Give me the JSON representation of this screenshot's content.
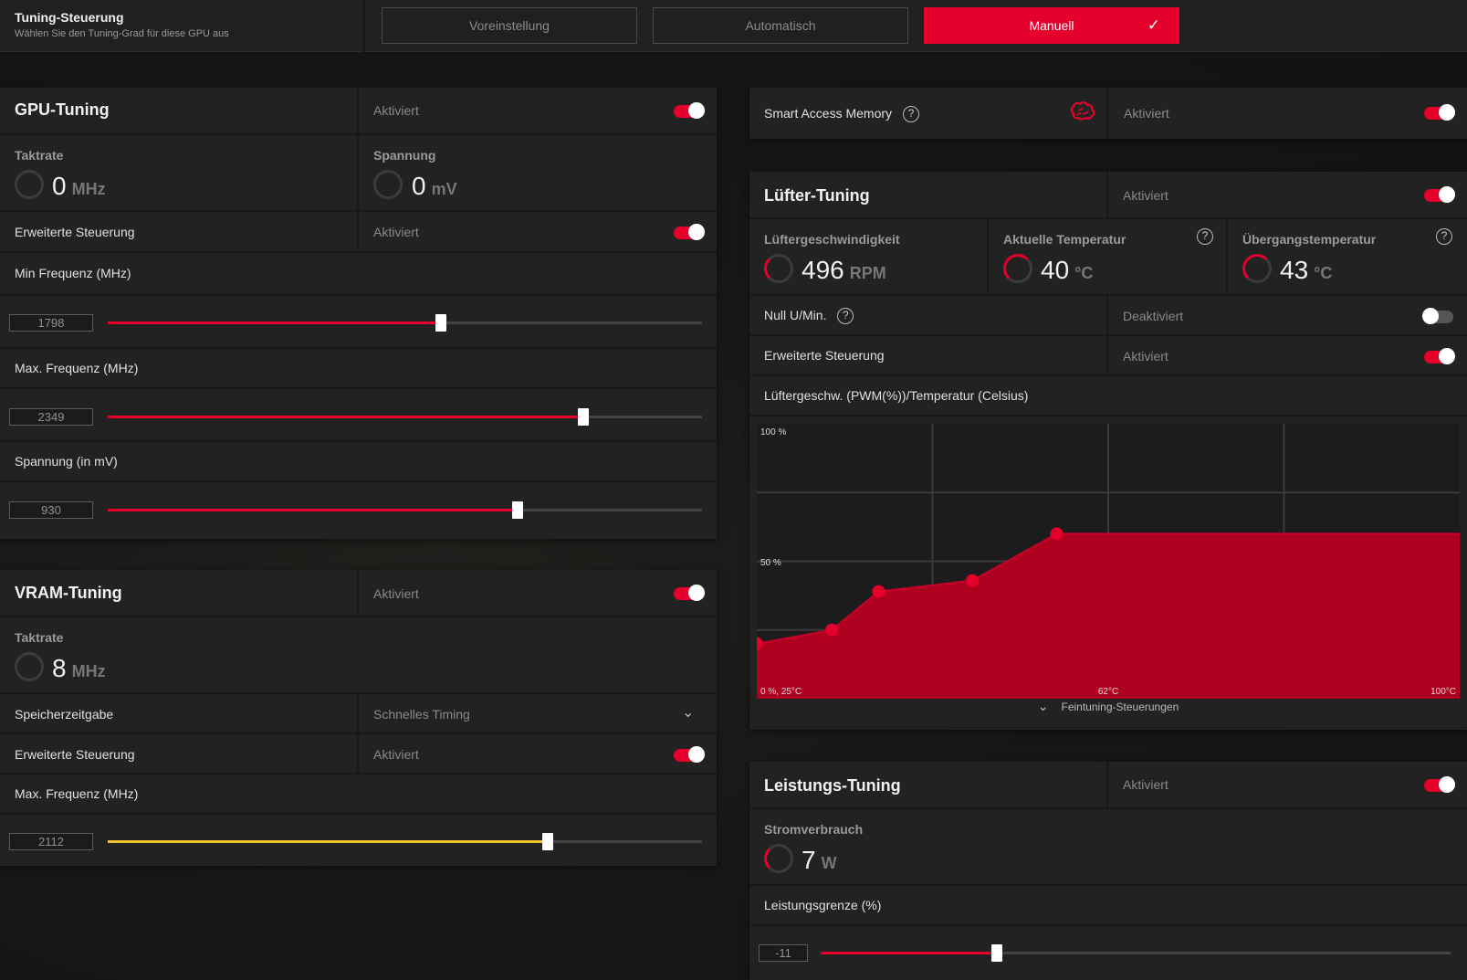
{
  "header": {
    "title": "Tuning-Steuerung",
    "subtitle": "Wählen Sie den Tuning-Grad für diese GPU aus",
    "modes": [
      "Voreinstellung",
      "Automatisch",
      "Manuell"
    ],
    "active_mode": "Manuell"
  },
  "gpu_tuning": {
    "title": "GPU-Tuning",
    "state": "Aktiviert",
    "clock": {
      "label": "Taktrate",
      "value": "0",
      "unit": "MHz"
    },
    "voltage": {
      "label": "Spannung",
      "value": "0",
      "unit": "mV"
    },
    "advanced": {
      "label": "Erweiterte Steuerung",
      "state": "Aktiviert"
    },
    "min_freq": {
      "label": "Min Frequenz (MHz)",
      "value": "1798",
      "fraction": 0.56
    },
    "max_freq": {
      "label": "Max. Frequenz (MHz)",
      "value": "2349",
      "fraction": 0.8
    },
    "voltage_mv": {
      "label": "Spannung (in mV)",
      "value": "930",
      "fraction": 0.69
    }
  },
  "vram_tuning": {
    "title": "VRAM-Tuning",
    "state": "Aktiviert",
    "clock": {
      "label": "Taktrate",
      "value": "8",
      "unit": "MHz"
    },
    "timing": {
      "label": "Speicherzeitgabe",
      "value": "Schnelles Timing"
    },
    "advanced": {
      "label": "Erweiterte Steuerung",
      "state": "Aktiviert"
    },
    "max_freq": {
      "label": "Max. Frequenz (MHz)",
      "value": "2112",
      "fraction": 0.74
    }
  },
  "sam": {
    "label": "Smart Access Memory",
    "state": "Aktiviert",
    "help": "?"
  },
  "fan_tuning": {
    "title": "Lüfter-Tuning",
    "state": "Aktiviert",
    "speed": {
      "label": "Lüftergeschwindigkeit",
      "value": "496",
      "unit": "RPM"
    },
    "temp": {
      "label": "Aktuelle Temperatur",
      "value": "40",
      "unit": "°C"
    },
    "junction": {
      "label": "Übergangstemperatur",
      "value": "43",
      "unit": "°C"
    },
    "zero_rpm": {
      "label": "Null U/Min.",
      "state": "Deaktiviert"
    },
    "advanced": {
      "label": "Erweiterte Steuerung",
      "state": "Aktiviert"
    },
    "curve_title": "Lüftergeschw. (PWM(%))/Temperatur (Celsius)",
    "fine": "Feintuning-Steuerungen"
  },
  "power_tuning": {
    "title": "Leistungs-Tuning",
    "state": "Aktiviert",
    "power": {
      "label": "Stromverbrauch",
      "value": "7",
      "unit": "W"
    },
    "limit": {
      "label": "Leistungsgrenze (%)",
      "value": "-11",
      "fraction": 0.28
    }
  },
  "chart_data": {
    "type": "area",
    "x": [
      25,
      33,
      38,
      48,
      57,
      62
    ],
    "y": [
      20,
      25,
      39,
      43,
      60,
      60
    ],
    "labels": {
      "y_top": "100 %",
      "y_mid": "50 %",
      "origin": "0 %, 25°C",
      "x_mid": "62°C",
      "x_max": "100°C"
    },
    "xlim": [
      25,
      100
    ],
    "ylim": [
      0,
      100
    ],
    "grid": true
  },
  "colors": {
    "accent": "#e4002b",
    "vram_slider": "#f2c12e"
  }
}
